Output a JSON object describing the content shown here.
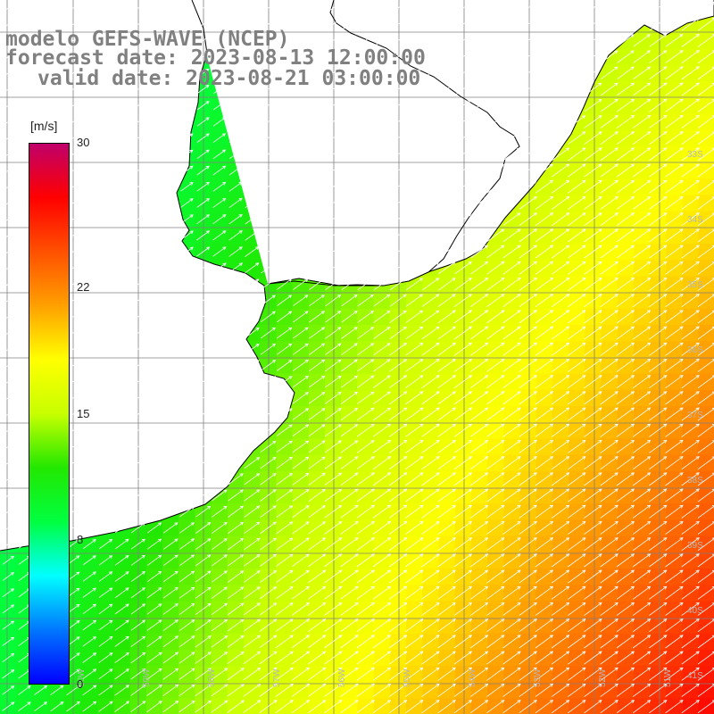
{
  "title": {
    "line1": "modelo GEFS-WAVE (NCEP)",
    "line2": "forecast date: 2023-08-13 12:00:00",
    "line3": "valid date: 2023-08-21 03:00:00"
  },
  "colorbar": {
    "unit": "[m/s]",
    "min": 0,
    "max": 30,
    "ticks": [
      {
        "label": "30",
        "value": 30
      },
      {
        "label": "22",
        "value": 22
      },
      {
        "label": "15",
        "value": 15
      },
      {
        "label": "8",
        "value": 8
      },
      {
        "label": "0",
        "value": 0
      }
    ],
    "colors": [
      "#0000ff",
      "#0078ff",
      "#00ffff",
      "#00ff40",
      "#22e800",
      "#c8ff00",
      "#ffff00",
      "#ffa000",
      "#ff5000",
      "#ff0000",
      "#c0006a"
    ]
  },
  "map": {
    "lat_range": [
      -32,
      -41
    ],
    "lon_range": [
      -62,
      -51
    ],
    "lat_labels": [
      "33S",
      "34S",
      "35S",
      "36S",
      "37S",
      "38S",
      "39S",
      "40S",
      "41S"
    ],
    "lon_labels": [
      "60W",
      "59W",
      "58W",
      "57W",
      "56W",
      "55W",
      "54W",
      "53W",
      "52W",
      "51W"
    ],
    "land_color": "#ffffff",
    "grid_color": "#808080",
    "arrow_color": "#ffffff"
  }
}
